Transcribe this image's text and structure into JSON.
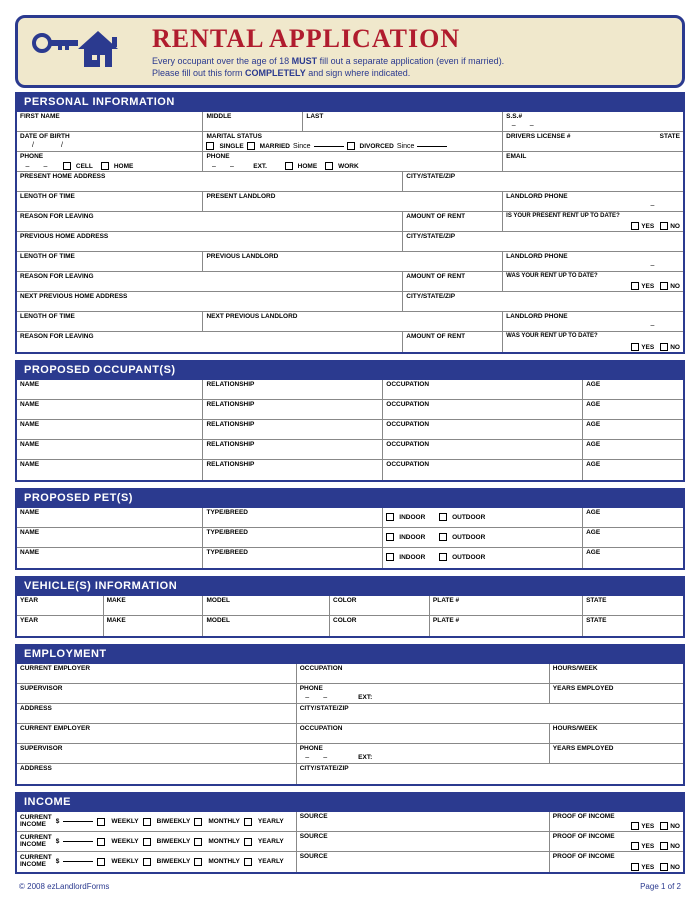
{
  "header": {
    "title": "RENTAL APPLICATION",
    "subtitle1": "Every occupant over the age of 18 MUST fill out a separate application (even if married).",
    "subtitle1_prefix": "Every occupant over the age of 18 ",
    "subtitle1_bold": "MUST",
    "subtitle1_suffix": " fill out a separate application (even if married).",
    "subtitle2_prefix": "Please fill out this form ",
    "subtitle2_bold": "COMPLETELY",
    "subtitle2_suffix": " and sign where indicated."
  },
  "sections": {
    "personal": "PERSONAL INFORMATION",
    "occupants": "PROPOSED OCCUPANT(S)",
    "pets": "PROPOSED PET(S)",
    "vehicles": "VEHICLE(S) INFORMATION",
    "employment": "EMPLOYMENT",
    "income": "INCOME"
  },
  "labels": {
    "firstName": "FIRST NAME",
    "middle": "MIDDLE",
    "last": "LAST",
    "ssn": "S.S.#",
    "dob": "DATE OF BIRTH",
    "marital": "MARITAL STATUS",
    "single": "SINGLE",
    "married": "MARRIED",
    "divorced": "DIVORCED",
    "since": "Since",
    "license": "DRIVERS LICENSE #",
    "state": "STATE",
    "phone": "PHONE",
    "cell": "CELL",
    "home": "HOME",
    "work": "WORK",
    "ext": "EXT.",
    "email": "EMAIL",
    "presentAddr": "PRESENT HOME ADDRESS",
    "cityStateZip": "CITY/STATE/ZIP",
    "lengthTime": "LENGTH OF TIME",
    "presentLandlord": "PRESENT LANDLORD",
    "landlordPhone": "LANDLORD PHONE",
    "reasonLeaving": "REASON FOR LEAVING",
    "amountRent": "AMOUNT OF RENT",
    "rentUpToDate": "Is your present rent up to date?",
    "wasRentUpToDate": "Was your rent up to date?",
    "yes": "YES",
    "no": "NO",
    "prevAddr": "PREVIOUS HOME ADDRESS",
    "prevLandlord": "PREVIOUS LANDLORD",
    "nextPrevAddr": "NEXT PREVIOUS HOME ADDRESS",
    "nextPrevLandlord": "NEXT PREVIOUS LANDLORD",
    "name": "NAME",
    "relationship": "RELATIONSHIP",
    "occupation": "OCCUPATION",
    "age": "AGE",
    "typeBreed": "TYPE/BREED",
    "indoor": "INDOOR",
    "outdoor": "OUTDOOR",
    "year": "YEAR",
    "make": "MAKE",
    "model": "MODEL",
    "color": "COLOR",
    "plate": "PLATE #",
    "currentEmployer": "CURRENT EMPLOYER",
    "hoursWeek": "HOURS/WEEK",
    "supervisor": "SUPERVISOR",
    "yearsEmployed": "YEARS EMPLOYED",
    "address": "ADDRESS",
    "extCap": "EXT:",
    "currentIncome": "CURRENT INCOME",
    "weekly": "WEEKLY",
    "biweekly": "BIWEEKLY",
    "monthly": "MONTHLY",
    "yearly": "YEARLY",
    "source": "SOURCE",
    "proofIncome": "PROOF OF INCOME",
    "dollar": "$"
  },
  "footer": {
    "copyright": "© 2008 ezLandlordForms",
    "page": "Page 1 of 2"
  },
  "colors": {
    "primary": "#2b3a8f",
    "accent": "#b01c2e",
    "banner_bg": "#f0e8cc"
  }
}
